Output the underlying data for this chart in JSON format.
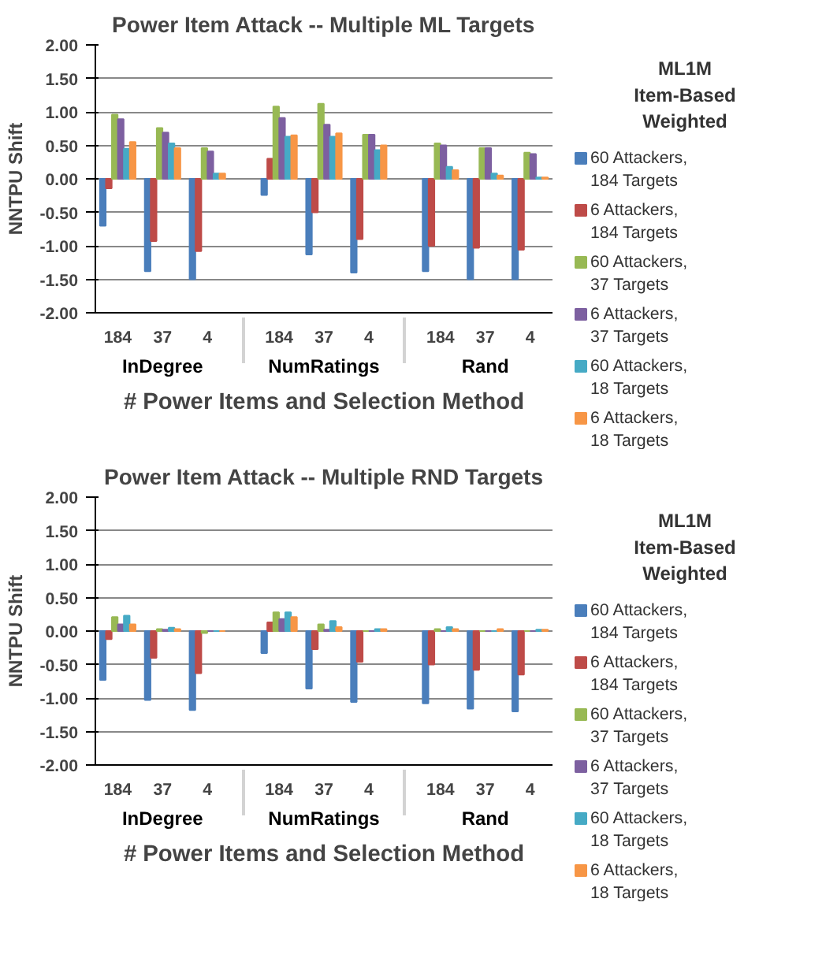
{
  "chart_data": [
    {
      "type": "bar",
      "title": "Power Item Attack -- Multiple ML Targets",
      "xlabel": "# Power Items and Selection Method",
      "ylabel": "NNTPU Shift",
      "legend_title": "ML1M Item-Based Weighted",
      "categories": [
        "184",
        "37",
        "4",
        "184",
        "37",
        "4",
        "184",
        "37",
        "4"
      ],
      "annotations": [
        "InDegree",
        "NumRatings",
        "Rand"
      ],
      "series": [
        {
          "name": "60 Attackers, 184 Targets",
          "color": "#4a7ebb",
          "values": [
            -0.7,
            -1.38,
            -1.5,
            -0.24,
            -1.13,
            -1.4,
            -1.38,
            -1.5,
            -1.5
          ]
        },
        {
          "name": "6 Attackers, 184 Targets",
          "color": "#be4b48",
          "values": [
            -0.14,
            -0.93,
            -1.08,
            0.3,
            -0.5,
            -0.9,
            -1.0,
            -1.03,
            -1.06
          ]
        },
        {
          "name": "60 Attackers, 37 Targets",
          "color": "#98b954",
          "values": [
            0.96,
            0.76,
            0.46,
            1.08,
            1.12,
            0.66,
            0.53,
            0.46,
            0.39
          ]
        },
        {
          "name": "6 Attackers, 37 Targets",
          "color": "#7d60a0",
          "values": [
            0.89,
            0.69,
            0.41,
            0.91,
            0.81,
            0.66,
            0.5,
            0.46,
            0.37
          ]
        },
        {
          "name": "60 Attackers, 18 Targets",
          "color": "#46aac5",
          "values": [
            0.45,
            0.53,
            0.08,
            0.63,
            0.63,
            0.43,
            0.18,
            0.08,
            0.02
          ]
        },
        {
          "name": "6 Attackers, 18 Targets",
          "color": "#f79646",
          "values": [
            0.55,
            0.46,
            0.08,
            0.65,
            0.68,
            0.5,
            0.13,
            0.05,
            0.02
          ]
        }
      ],
      "ylim": [
        -2.0,
        2.0
      ],
      "yticks": [
        {
          "value": 2.0,
          "label": "2.00"
        },
        {
          "value": 1.5,
          "label": "1.50"
        },
        {
          "value": 1.0,
          "label": "1.00"
        },
        {
          "value": 0.5,
          "label": "0.50"
        },
        {
          "value": 0.0,
          "label": "0.00"
        },
        {
          "value": -0.5,
          "label": "-0.50"
        },
        {
          "value": -1.0,
          "label": "-1.00"
        },
        {
          "value": -1.5,
          "label": "-1.50"
        },
        {
          "value": -2.0,
          "label": "-2.00"
        }
      ],
      "grid": "y",
      "legend": "right"
    },
    {
      "type": "bar",
      "title": "Power Item Attack -- Multiple RND Targets",
      "xlabel": "# Power Items and Selection Method",
      "ylabel": "NNTPU Shift",
      "legend_title": "ML1M Item-Based Weighted",
      "categories": [
        "184",
        "37",
        "4",
        "184",
        "37",
        "4",
        "184",
        "37",
        "4"
      ],
      "annotations": [
        "InDegree",
        "NumRatings",
        "Rand"
      ],
      "series": [
        {
          "name": "60 Attackers, 184 Targets",
          "color": "#4a7ebb",
          "values": [
            -0.73,
            -1.03,
            -1.18,
            -0.33,
            -0.86,
            -1.06,
            -1.08,
            -1.16,
            -1.2
          ]
        },
        {
          "name": "6 Attackers, 184 Targets",
          "color": "#be4b48",
          "values": [
            -0.12,
            -0.4,
            -0.63,
            0.13,
            -0.27,
            -0.46,
            -0.5,
            -0.58,
            -0.65
          ]
        },
        {
          "name": "60 Attackers, 37 Targets",
          "color": "#98b954",
          "values": [
            0.21,
            0.03,
            -0.03,
            0.28,
            0.1,
            0.0,
            0.03,
            0.0,
            0.0
          ]
        },
        {
          "name": "6 Attackers, 37 Targets",
          "color": "#7d60a0",
          "values": [
            0.1,
            0.02,
            0.0,
            0.18,
            0.02,
            0.0,
            0.0,
            0.0,
            0.0
          ]
        },
        {
          "name": "60 Attackers, 18 Targets",
          "color": "#46aac5",
          "values": [
            0.23,
            0.05,
            0.0,
            0.28,
            0.15,
            0.03,
            0.06,
            0.0,
            0.02
          ]
        },
        {
          "name": "6 Attackers, 18 Targets",
          "color": "#f79646",
          "values": [
            0.1,
            0.03,
            0.0,
            0.21,
            0.06,
            0.03,
            0.03,
            0.03,
            0.02
          ]
        }
      ],
      "ylim": [
        -2.0,
        2.0
      ],
      "yticks": [
        {
          "value": 2.0,
          "label": "2.00"
        },
        {
          "value": 1.5,
          "label": "1.50"
        },
        {
          "value": 1.0,
          "label": "1.00"
        },
        {
          "value": 0.5,
          "label": "0.50"
        },
        {
          "value": 0.0,
          "label": "0.00"
        },
        {
          "value": -0.5,
          "label": "-0.50"
        },
        {
          "value": -1.0,
          "label": "-1.00"
        },
        {
          "value": -1.5,
          "label": "-1.50"
        },
        {
          "value": -2.0,
          "label": "-2.00"
        }
      ],
      "grid": "y",
      "legend": "right"
    }
  ]
}
